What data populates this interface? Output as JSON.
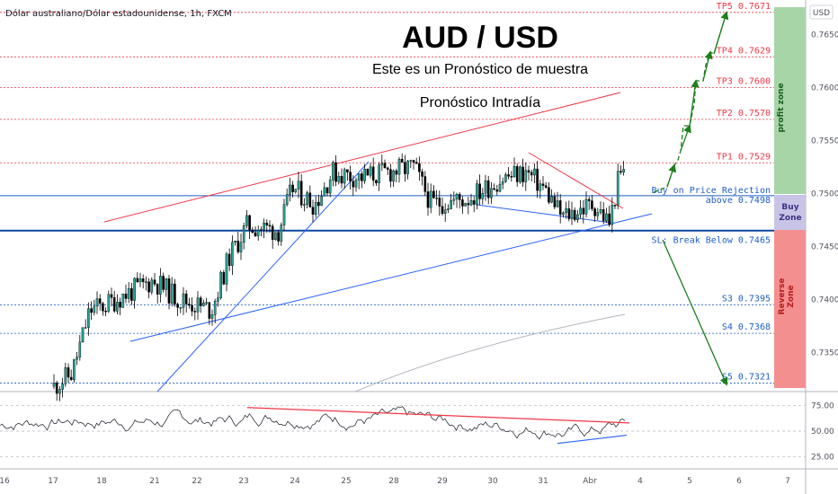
{
  "header": {
    "symbol_line": "Dólar australiano/Dólar estadounidense, 1h, FXCM",
    "title": "AUD / USD",
    "subtitle": "Este es un Pronóstico de muestra",
    "subtitle2": "Pronóstico Intradía",
    "currency_badge": "USD"
  },
  "levels": [
    {
      "label": "TP5 0.7671",
      "price": 0.7671,
      "kind": "tp"
    },
    {
      "label": "TP4 0.7629",
      "price": 0.7629,
      "kind": "tp"
    },
    {
      "label": "TP3 0.7600",
      "price": 0.76,
      "kind": "tp"
    },
    {
      "label": "TP2 0.7570",
      "price": 0.757,
      "kind": "tp"
    },
    {
      "label": "TP1 0.7529",
      "price": 0.7529,
      "kind": "tp"
    },
    {
      "label": "Buy on Price Rejection",
      "label2": "above 0.7498",
      "price": 0.7498,
      "kind": "buy"
    },
    {
      "label": "SL: Break Below 0.7465",
      "price": 0.7465,
      "kind": "sl"
    },
    {
      "label": "S3 0.7395",
      "price": 0.7395,
      "kind": "s"
    },
    {
      "label": "S4 0.7368",
      "price": 0.7368,
      "kind": "s"
    },
    {
      "label": "S5 0.7321",
      "price": 0.7321,
      "kind": "s"
    }
  ],
  "zones": {
    "profit": "profit zone",
    "buy": "Buy Zone",
    "reverse": "Reverse Zone",
    "profit_color": "#a8d5a8",
    "buy_color": "#c7c4e6",
    "reverse_color": "#f48f8f"
  },
  "chart_data": {
    "type": "candlestick",
    "price_axis": {
      "range": [
        0.7313,
        0.7681
      ],
      "ticks": [
        "0.76500",
        "0.76000",
        "0.75500",
        "0.75000",
        "0.74500",
        "0.74000",
        "0.73500"
      ],
      "tick_values": [
        0.765,
        0.76,
        0.755,
        0.75,
        0.745,
        0.74,
        0.735
      ]
    },
    "time_axis": {
      "labels": [
        "16",
        "17",
        "18",
        "21",
        "22",
        "23",
        "24",
        "25",
        "28",
        "29",
        "30",
        "31",
        "Abr",
        "4",
        "5",
        "6",
        "7"
      ]
    },
    "rsi_axis": {
      "range": [
        15,
        85
      ],
      "ticks": [
        "75.00",
        "50.00",
        "25.00"
      ],
      "tick_values": [
        75,
        50,
        25
      ]
    },
    "colors": {
      "up": "#26a69a",
      "down": "#000000",
      "wick": "#000000",
      "trend_red": "#f23645",
      "trend_blue": "#2962ff",
      "arrows": "#1b7f1b",
      "ma": "#b2b5be"
    }
  }
}
